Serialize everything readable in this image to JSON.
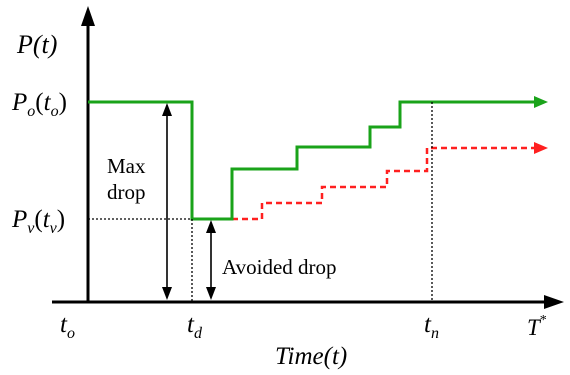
{
  "axes": {
    "y_label": "P(t)",
    "x_label": "Time(t)"
  },
  "levels": {
    "p_o": {
      "main": "P",
      "sub": "o",
      "arg_main": "t",
      "arg_sub": "o"
    },
    "p_v": {
      "main": "P",
      "sub": "v",
      "arg_main": "t",
      "arg_sub": "v"
    }
  },
  "time_ticks": {
    "t_o": {
      "main": "t",
      "sub": "o"
    },
    "t_d": {
      "main": "t",
      "sub": "d"
    },
    "t_n": {
      "main": "t",
      "sub": "n"
    },
    "t_star": {
      "main": "T",
      "sup": "*"
    }
  },
  "annotations": {
    "max_drop_line1": "Max",
    "max_drop_line2": "drop",
    "avoided_drop": "Avoided drop"
  },
  "colors": {
    "actual_curve": "#1aa31a",
    "avoided_curve": "#ff2020",
    "axes": "#000000"
  }
}
